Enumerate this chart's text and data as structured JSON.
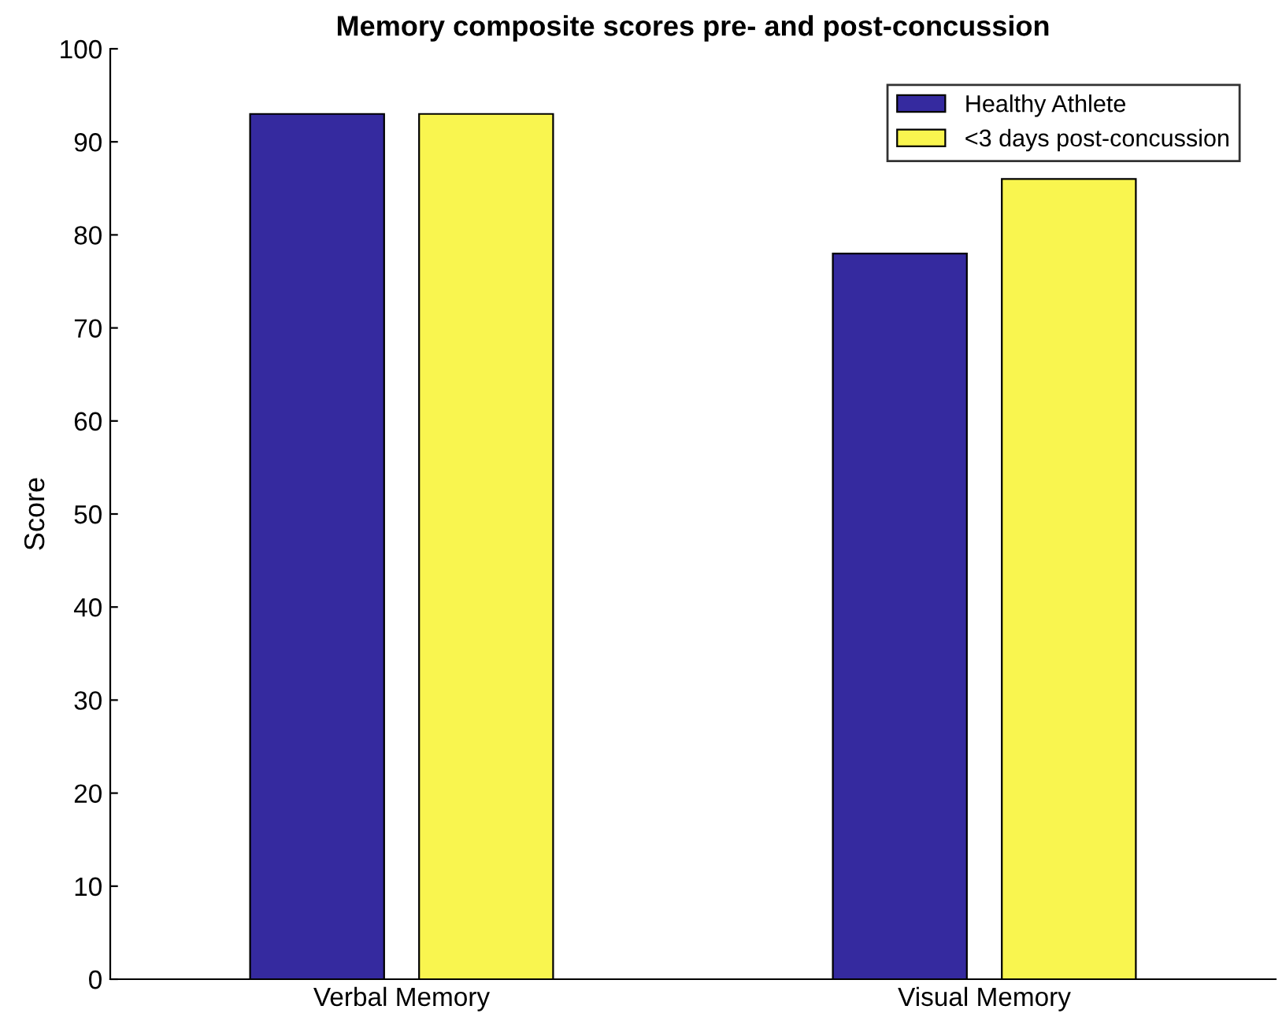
{
  "chart_data": {
    "type": "bar",
    "title": "Memory composite scores pre- and post-concussion",
    "ylabel": "Score",
    "categories": [
      "Verbal Memory",
      "Visual Memory"
    ],
    "series": [
      {
        "name": "Healthy Athlete",
        "color": "#352a9f",
        "values": [
          93,
          78
        ]
      },
      {
        "name": "<3 days post-concussion",
        "color": "#f9f54f",
        "values": [
          93,
          86
        ]
      }
    ],
    "ylim": [
      0,
      100
    ],
    "yticks": [
      0,
      10,
      20,
      30,
      40,
      50,
      60,
      70,
      80,
      90,
      100
    ],
    "grid": false,
    "legend": "top right"
  }
}
